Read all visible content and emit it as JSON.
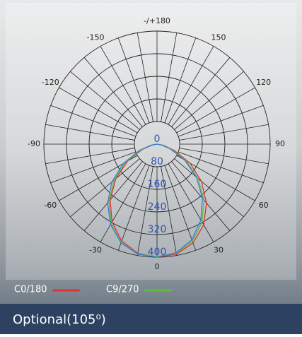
{
  "chart_data": {
    "type": "polar",
    "x": [
      -90,
      -80,
      -70,
      -60,
      -50,
      -40,
      -30,
      -20,
      -10,
      0,
      10,
      20,
      30,
      40,
      50,
      60,
      70,
      80,
      90
    ],
    "series": [
      {
        "name": "C0/180",
        "color": "#e03030",
        "values": [
          0,
          15,
          55,
          120,
          190,
          258,
          318,
          365,
          392,
          400,
          395,
          372,
          330,
          272,
          205,
          135,
          65,
          22,
          0
        ]
      },
      {
        "name": "C9/270",
        "color": "#5cbf3a",
        "values": [
          0,
          18,
          60,
          128,
          198,
          265,
          325,
          370,
          394,
          398,
          392,
          365,
          318,
          258,
          190,
          120,
          55,
          18,
          0
        ]
      },
      {
        "color": "#3a7fd8",
        "values": [
          0,
          22,
          68,
          138,
          208,
          272,
          328,
          372,
          395,
          400,
          390,
          360,
          310,
          250,
          182,
          112,
          50,
          15,
          0
        ]
      }
    ],
    "rlim": [
      0,
      400
    ],
    "rticks": [
      0,
      80,
      160,
      240,
      320,
      400
    ],
    "angle_ticks": [
      0,
      30,
      60,
      90,
      120,
      150,
      {
        "value": 180,
        "label": "-/+180"
      },
      -150,
      -120,
      -90,
      -60,
      -30
    ],
    "footer": "Optional(105⁰)"
  }
}
